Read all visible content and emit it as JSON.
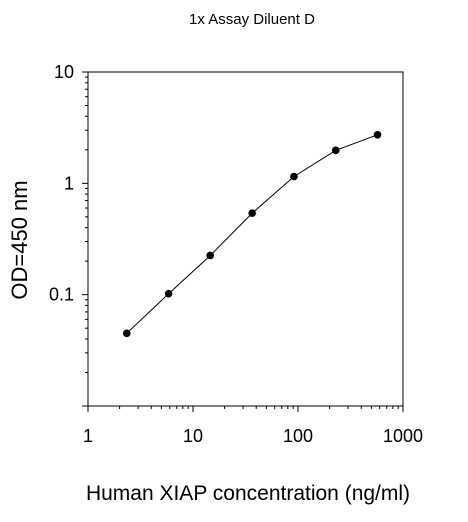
{
  "chart_data": {
    "type": "line",
    "title": "1x Assay Diluent D",
    "xlabel": "Human XIAP concentration (ng/ml)",
    "ylabel": "OD=450 nm",
    "x_scale": "log",
    "y_scale": "log",
    "xlim": [
      1,
      1000
    ],
    "ylim": [
      0.01,
      10
    ],
    "x_ticks": [
      {
        "value": 1,
        "label": "1"
      },
      {
        "value": 10,
        "label": "10"
      },
      {
        "value": 100,
        "label": "100"
      },
      {
        "value": 1000,
        "label": "1000"
      }
    ],
    "y_ticks": [
      {
        "value": 10,
        "label": "10"
      },
      {
        "value": 1,
        "label": "1"
      },
      {
        "value": 0.1,
        "label": "0.1"
      }
    ],
    "grid": false,
    "legend": "none",
    "series": [
      {
        "x": [
          2.34,
          5.86,
          14.6,
          36.6,
          91.5,
          229,
          572
        ],
        "y": [
          0.045,
          0.102,
          0.225,
          0.54,
          1.15,
          1.98,
          2.73
        ],
        "color": "#000000",
        "marker": "circle"
      }
    ]
  }
}
